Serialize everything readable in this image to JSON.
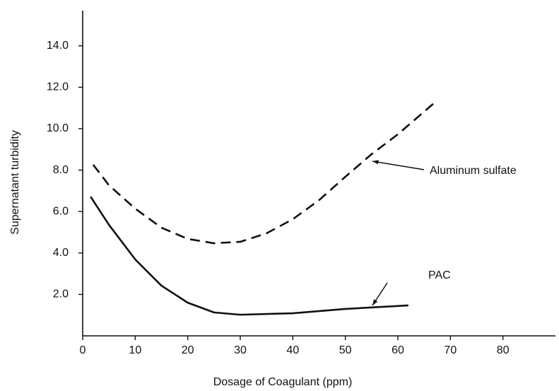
{
  "chart_data": {
    "type": "line",
    "xlabel": "Dosage of Coagulant (ppm)",
    "ylabel": "Supernatant turbidity",
    "xlim": [
      0,
      90
    ],
    "ylim": [
      0,
      15.7
    ],
    "xticks": [
      0,
      10,
      20,
      30,
      40,
      50,
      60,
      70,
      80
    ],
    "yticks": [
      {
        "value": 2,
        "label": "2.0"
      },
      {
        "value": 4,
        "label": "4.0"
      },
      {
        "value": 6,
        "label": "6.0"
      },
      {
        "value": 8,
        "label": "8.0"
      },
      {
        "value": 10,
        "label": "10.0"
      },
      {
        "value": 12,
        "label": "12.0"
      },
      {
        "value": 14,
        "label": "14.0"
      }
    ],
    "series": [
      {
        "name": "Aluminum sulfate",
        "color": "#111111",
        "style": "dashed",
        "x": [
          2,
          5,
          10,
          15,
          20,
          25,
          30,
          35,
          40,
          45,
          50,
          55,
          60,
          67
        ],
        "values": [
          8.26,
          7.27,
          6.14,
          5.22,
          4.68,
          4.47,
          4.54,
          4.95,
          5.63,
          6.55,
          7.68,
          8.77,
          9.73,
          11.26
        ]
      },
      {
        "name": "PAC",
        "color": "#111111",
        "style": "solid",
        "x": [
          1.5,
          5,
          10,
          15,
          20,
          25,
          30,
          40,
          50,
          62
        ],
        "values": [
          6.72,
          5.36,
          3.69,
          2.42,
          1.6,
          1.13,
          1.02,
          1.09,
          1.3,
          1.47
        ]
      }
    ]
  }
}
